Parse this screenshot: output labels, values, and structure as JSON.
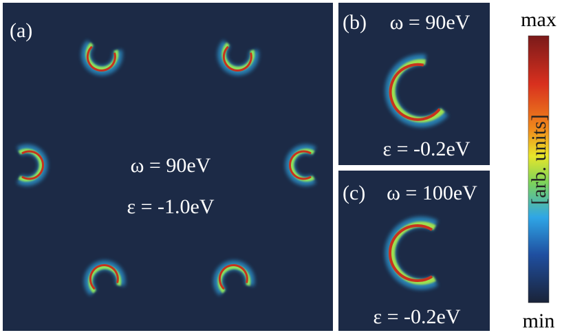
{
  "panels": [
    {
      "label": "(a)",
      "omega": "ω = 90eV",
      "epsilon": "ε = -1.0eV"
    },
    {
      "label": "(b)",
      "omega": "ω = 90eV",
      "epsilon": "ε = -0.2eV"
    },
    {
      "label": "(c)",
      "omega": "ω = 100eV",
      "epsilon": "ε = -0.2eV"
    }
  ],
  "colorbar": {
    "max": "max",
    "min": "min",
    "label": "[arb. units]"
  }
}
